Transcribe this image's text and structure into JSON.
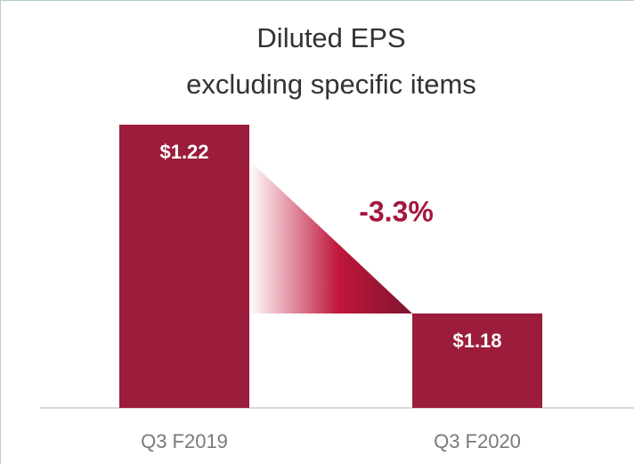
{
  "chart_data": {
    "type": "bar",
    "title": [
      "Diluted EPS",
      "excluding specific items"
    ],
    "categories": [
      "Q3 F2019",
      "Q3 F2020"
    ],
    "values": [
      1.22,
      1.18
    ],
    "value_labels": [
      "$1.22",
      "$1.18"
    ],
    "annotation": "-3.3%",
    "color": "#9b1c3b",
    "ylim": [
      1.16,
      1.22
    ]
  }
}
